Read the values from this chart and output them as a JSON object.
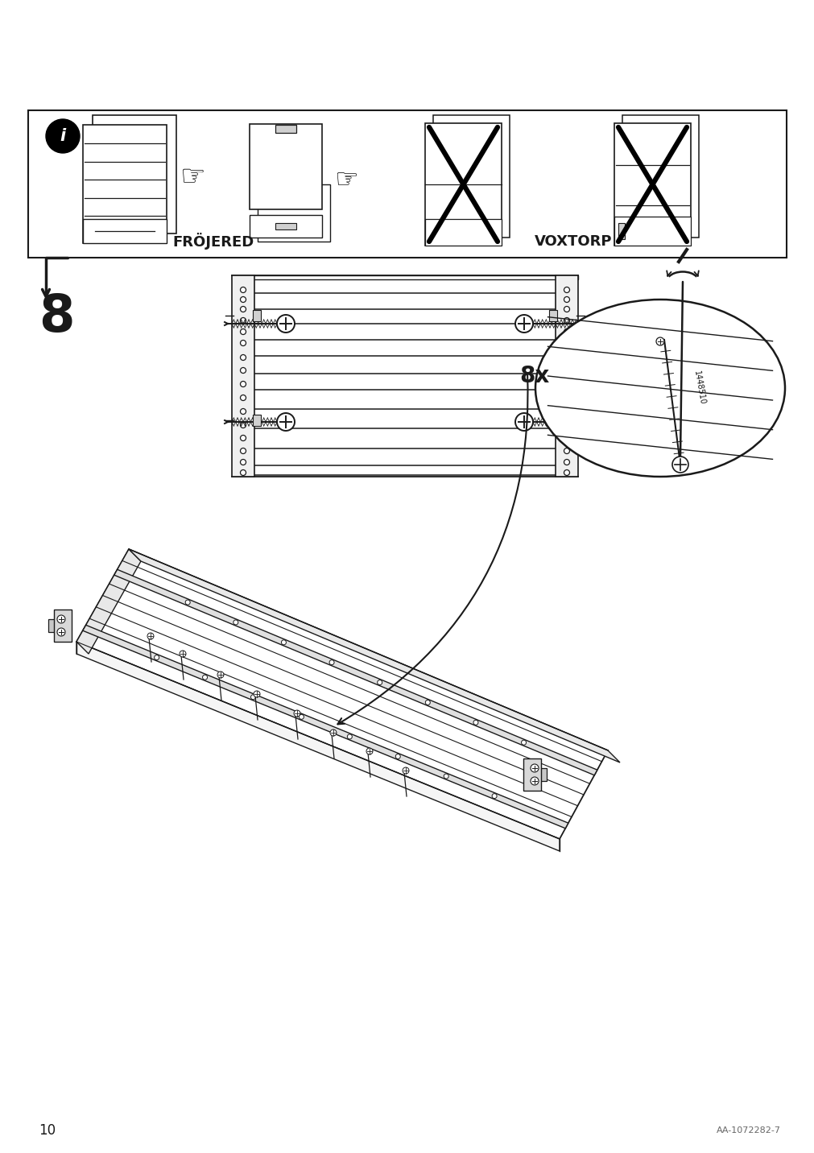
{
  "page_number": "10",
  "article_number": "AA-1072282-7",
  "step_number": "8",
  "screw_count": "8x",
  "screw_id": "1448510",
  "label_frojered": "FRÖJERED",
  "label_voxtorp": "VOXTORP",
  "bg_color": "#ffffff",
  "line_color": "#1a1a1a",
  "gray_color": "#666666",
  "light_gray": "#d0d0d0",
  "mid_gray": "#aaaaaa"
}
